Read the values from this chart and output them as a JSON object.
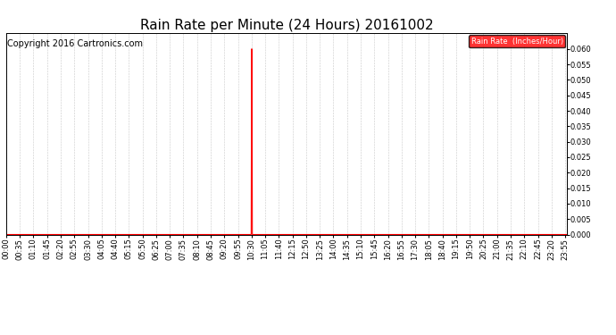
{
  "title": "Rain Rate per Minute (24 Hours) 20161002",
  "copyright": "Copyright 2016 Cartronics.com",
  "legend_label": "Rain Rate  (Inches/Hour)",
  "ylim": [
    0.0,
    0.065
  ],
  "yticks": [
    0.0,
    0.005,
    0.01,
    0.015,
    0.02,
    0.025,
    0.03,
    0.035,
    0.04,
    0.045,
    0.05,
    0.055,
    0.06
  ],
  "line_color": "#ff0000",
  "grid_color": "#bbbbbb",
  "bg_color": "#ffffff",
  "plot_bg_color": "#ffffff",
  "legend_bg": "#ff0000",
  "legend_text_color": "#ffffff",
  "title_fontsize": 11,
  "tick_fontsize": 6,
  "copyright_fontsize": 7,
  "spike_minute": 630,
  "label_interval_minutes": 35,
  "total_minutes": 1440
}
